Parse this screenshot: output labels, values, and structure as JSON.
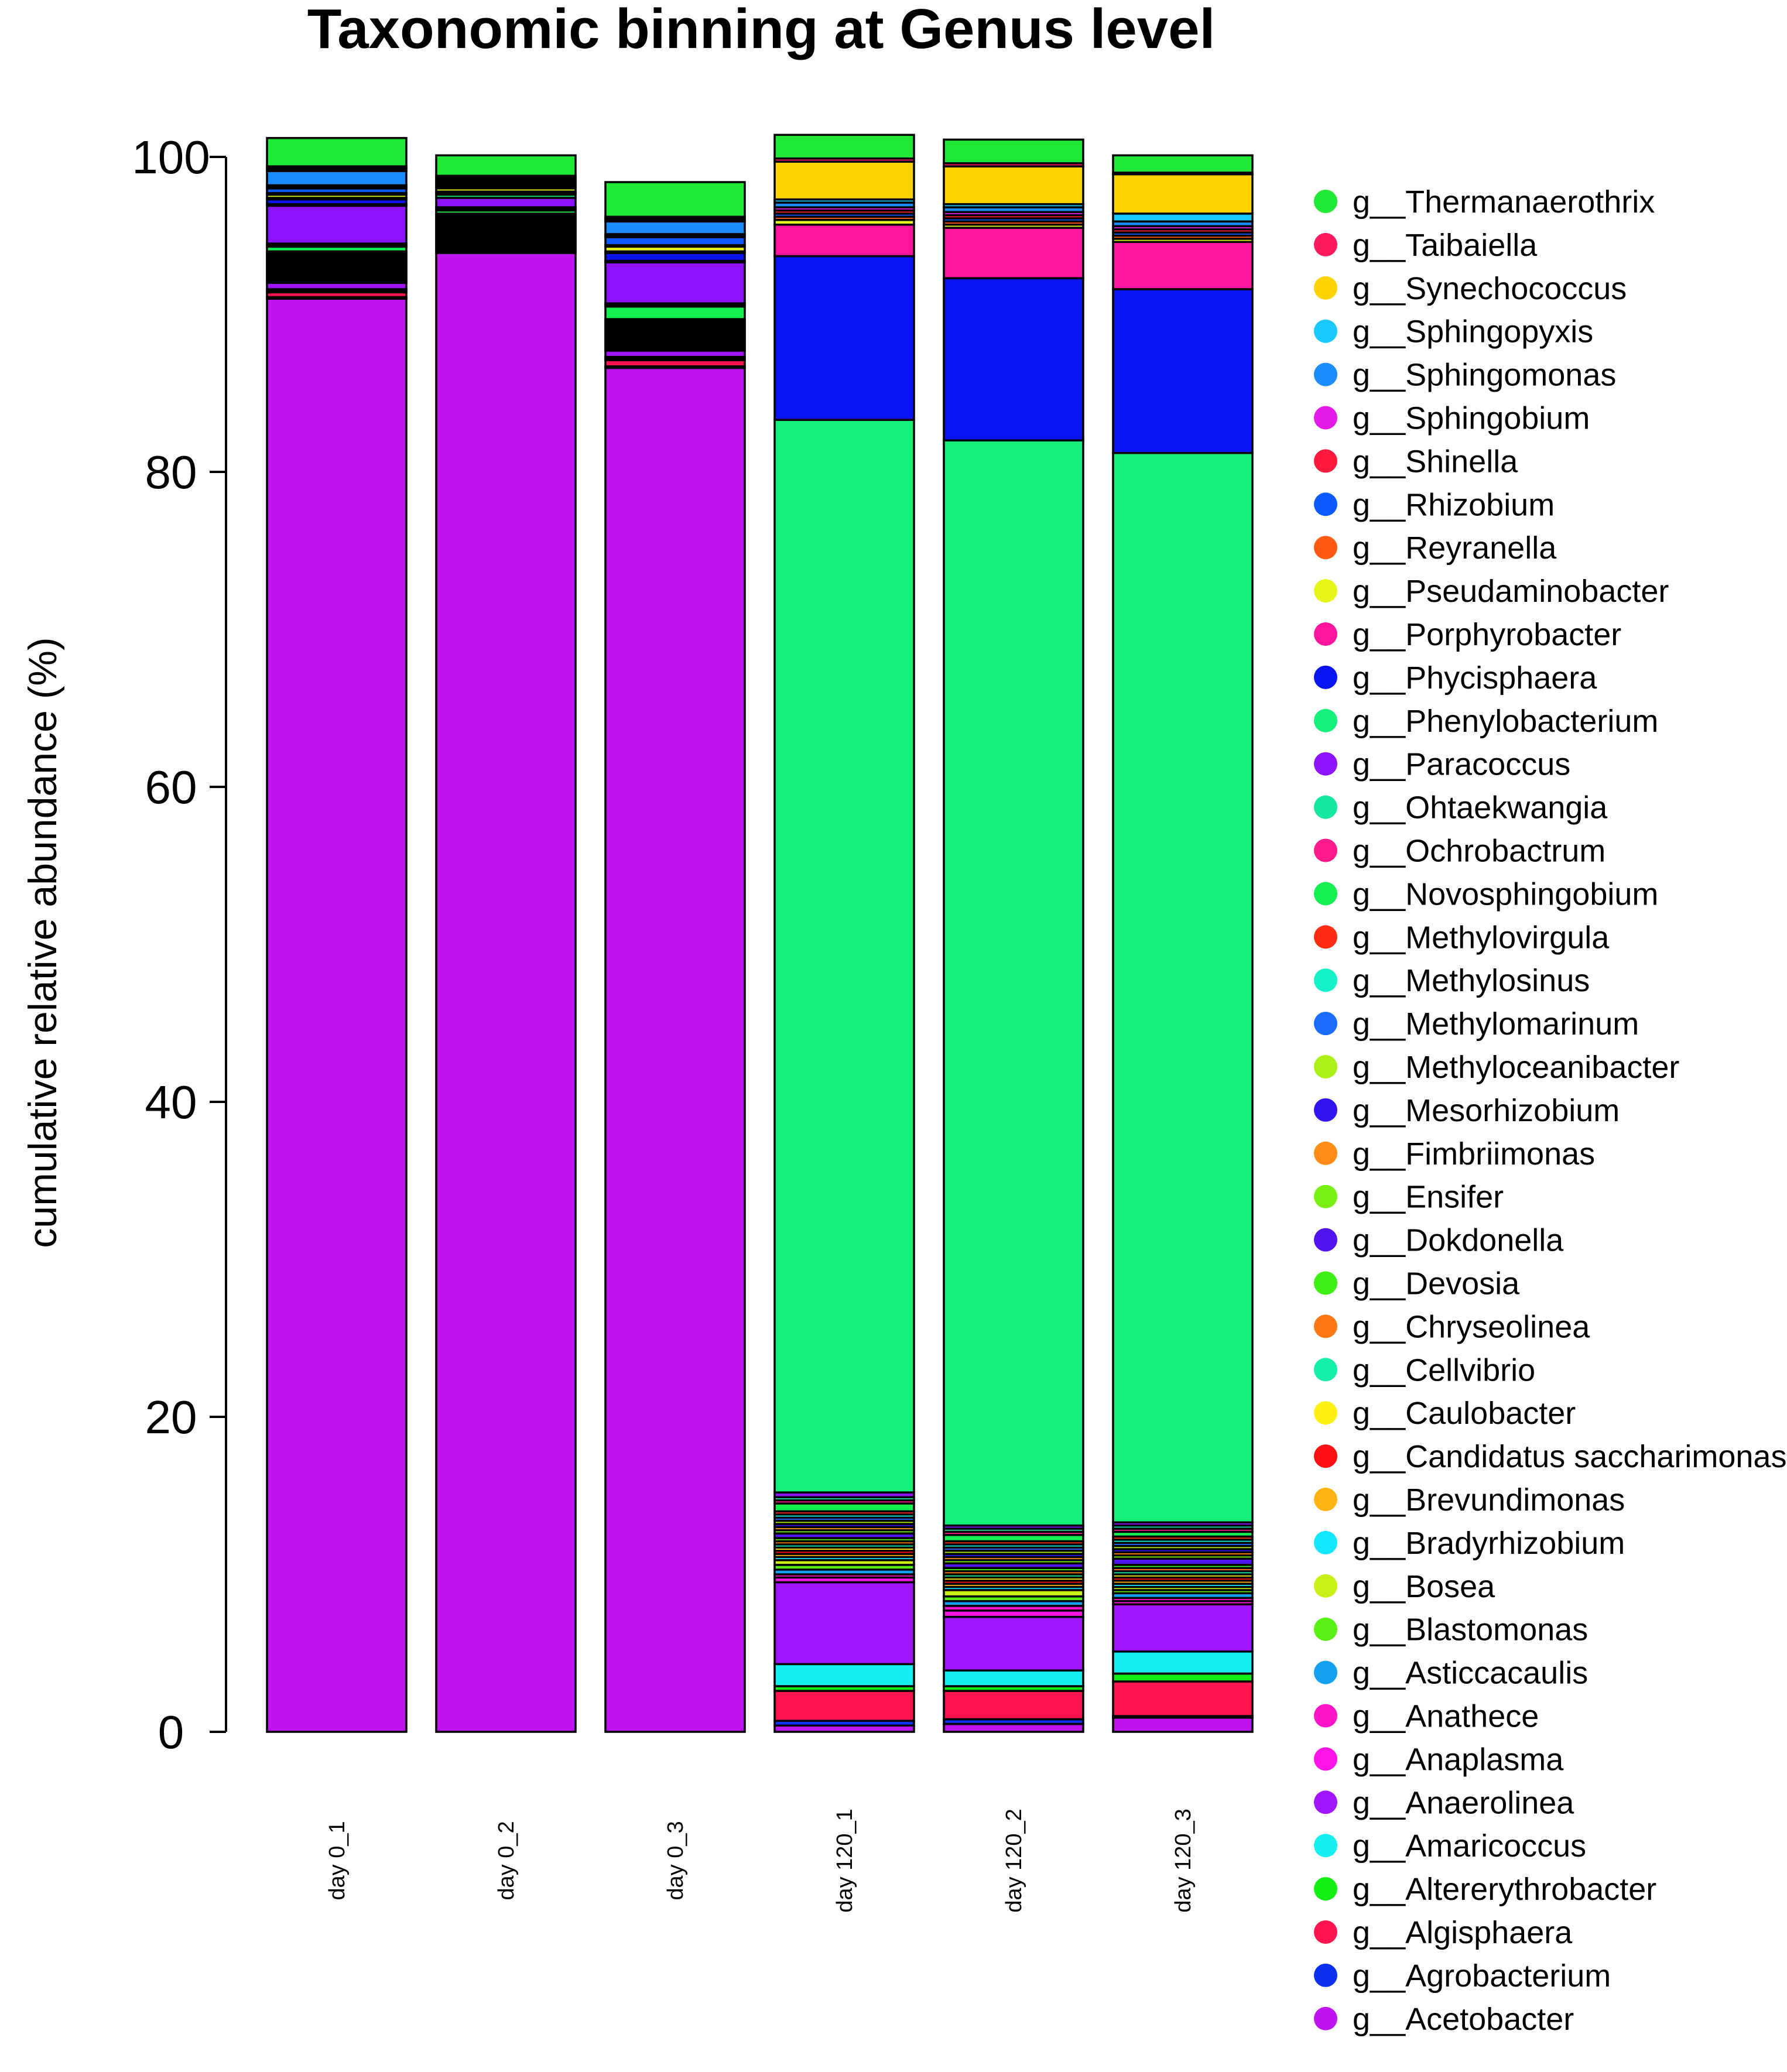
{
  "chart_data": {
    "type": "bar",
    "stacked": true,
    "title": "Taxonomic binning at Genus level",
    "xlabel": "",
    "ylabel": "cumulative relative abundance (%)",
    "ylim": [
      0,
      100
    ],
    "yticks": [
      0,
      20,
      40,
      60,
      80,
      100
    ],
    "categories": [
      "day 0_1",
      "day 0_2",
      "day 0_3",
      "day 120_1",
      "day 120_2",
      "day 120_3"
    ],
    "legend_position": "right",
    "legend": [
      {
        "name": "g__Thermanaerothrix",
        "color": "#1fe836"
      },
      {
        "name": "g__Taibaiella",
        "color": "#ff1a5e"
      },
      {
        "name": "g__Synechococcus",
        "color": "#ffd200"
      },
      {
        "name": "g__Sphingopyxis",
        "color": "#1ac8ff"
      },
      {
        "name": "g__Sphingomonas",
        "color": "#1a8cff"
      },
      {
        "name": "g__Sphingobium",
        "color": "#e61ae6"
      },
      {
        "name": "g__Shinella",
        "color": "#ff1a3c"
      },
      {
        "name": "g__Rhizobium",
        "color": "#0a5aff"
      },
      {
        "name": "g__Reyranella",
        "color": "#ff5a14"
      },
      {
        "name": "g__Pseudaminobacter",
        "color": "#e6f51a"
      },
      {
        "name": "g__Porphyrobacter",
        "color": "#ff14a0"
      },
      {
        "name": "g__Phycisphaera",
        "color": "#0a14f0"
      },
      {
        "name": "g__Phenylobacterium",
        "color": "#14f07a"
      },
      {
        "name": "g__Paracoccus",
        "color": "#8c14ff"
      },
      {
        "name": "g__Ohtaekwangia",
        "color": "#14e6a0"
      },
      {
        "name": "g__Ochrobactrum",
        "color": "#ff1a8c"
      },
      {
        "name": "g__Novosphingobium",
        "color": "#14f050"
      },
      {
        "name": "g__Methylovirgula",
        "color": "#ff2d14"
      },
      {
        "name": "g__Methylosinus",
        "color": "#14f0c8"
      },
      {
        "name": "g__Methylomarinum",
        "color": "#1a6cff"
      },
      {
        "name": "g__Methyloceanibacter",
        "color": "#aaf014"
      },
      {
        "name": "g__Mesorhizobium",
        "color": "#3214f0"
      },
      {
        "name": "g__Fimbriimonas",
        "color": "#ff8c14"
      },
      {
        "name": "g__Ensifer",
        "color": "#78f014"
      },
      {
        "name": "g__Dokdonella",
        "color": "#5014f0"
      },
      {
        "name": "g__Devosia",
        "color": "#3cf014"
      },
      {
        "name": "g__Chryseolinea",
        "color": "#ff7814"
      },
      {
        "name": "g__Cellvibrio",
        "color": "#14f0aa"
      },
      {
        "name": "g__Caulobacter",
        "color": "#fff014"
      },
      {
        "name": "g__Candidatus saccharimonas",
        "color": "#ff0f0f"
      },
      {
        "name": "g__Brevundimonas",
        "color": "#ffb414"
      },
      {
        "name": "g__Bradyrhizobium",
        "color": "#14e6ff"
      },
      {
        "name": "g__Bosea",
        "color": "#c8f014"
      },
      {
        "name": "g__Blastomonas",
        "color": "#5af014"
      },
      {
        "name": "g__Asticcacaulis",
        "color": "#14a0f0"
      },
      {
        "name": "g__Anathece",
        "color": "#ff14c8"
      },
      {
        "name": "g__Anaplasma",
        "color": "#ff14e6"
      },
      {
        "name": "g__Anaerolinea",
        "color": "#a014ff"
      },
      {
        "name": "g__Amaricoccus",
        "color": "#14f0f0"
      },
      {
        "name": "g__Altererythrobacter",
        "color": "#14f014"
      },
      {
        "name": "g__Algisphaera",
        "color": "#ff1450"
      },
      {
        "name": "g__Agrobacterium",
        "color": "#0a32f0"
      },
      {
        "name": "g__Acetobacter",
        "color": "#be14f0"
      }
    ],
    "series": [
      {
        "name": "g__Acetobacter",
        "values": [
          91.0,
          93.9,
          86.6,
          0.4,
          0.5,
          0.9
        ]
      },
      {
        "name": "g__Agrobacterium",
        "values": [
          0.1,
          0.1,
          0.1,
          0.3,
          0.3,
          0.1
        ]
      },
      {
        "name": "g__Algisphaera",
        "values": [
          0.3,
          0.1,
          0.4,
          1.9,
          1.8,
          2.2
        ]
      },
      {
        "name": "g__Altererythrobacter",
        "values": [
          0.1,
          0.1,
          0.1,
          0.3,
          0.3,
          0.5
        ]
      },
      {
        "name": "g__Amaricoccus",
        "values": [
          0.1,
          0.1,
          0.1,
          1.4,
          1.0,
          1.4
        ]
      },
      {
        "name": "g__Anaerolinea",
        "values": [
          0.4,
          0.1,
          0.4,
          5.2,
          3.4,
          3.0
        ]
      },
      {
        "name": "g__Anaplasma",
        "values": [
          0.1,
          0.1,
          0.1,
          0.3,
          0.4,
          0.2
        ]
      },
      {
        "name": "g__Anathece",
        "values": [
          0.1,
          0.1,
          0.1,
          0.2,
          0.3,
          0.2
        ]
      },
      {
        "name": "g__Asticcacaulis",
        "values": [
          0.1,
          0.1,
          0.1,
          0.3,
          0.3,
          0.3
        ]
      },
      {
        "name": "g__Blastomonas",
        "values": [
          0.1,
          0.1,
          0.1,
          0.3,
          0.3,
          0.2
        ]
      },
      {
        "name": "g__Bosea",
        "values": [
          0.1,
          0.1,
          0.1,
          0.3,
          0.4,
          0.2
        ]
      },
      {
        "name": "g__Bradyrhizobium",
        "values": [
          0.1,
          0.1,
          0.1,
          0.2,
          0.2,
          0.2
        ]
      },
      {
        "name": "g__Brevundimonas",
        "values": [
          0.1,
          0.1,
          0.1,
          0.2,
          0.2,
          0.2
        ]
      },
      {
        "name": "g__Candidatus saccharimonas",
        "values": [
          0.1,
          0.1,
          0.1,
          0.2,
          0.2,
          0.2
        ]
      },
      {
        "name": "g__Caulobacter",
        "values": [
          0.1,
          0.1,
          0.1,
          0.2,
          0.2,
          0.2
        ]
      },
      {
        "name": "g__Cellvibrio",
        "values": [
          0.1,
          0.1,
          0.1,
          0.2,
          0.2,
          0.2
        ]
      },
      {
        "name": "g__Chryseolinea",
        "values": [
          0.1,
          0.1,
          0.1,
          0.2,
          0.2,
          0.2
        ]
      },
      {
        "name": "g__Devosia",
        "values": [
          0.1,
          0.1,
          0.1,
          0.2,
          0.2,
          0.2
        ]
      },
      {
        "name": "g__Dokdonella",
        "values": [
          0.1,
          0.1,
          0.1,
          0.3,
          0.3,
          0.4
        ]
      },
      {
        "name": "g__Ensifer",
        "values": [
          0.1,
          0.1,
          0.1,
          0.2,
          0.2,
          0.2
        ]
      },
      {
        "name": "g__Fimbriimonas",
        "values": [
          0.1,
          0.1,
          0.1,
          0.2,
          0.2,
          0.2
        ]
      },
      {
        "name": "g__Mesorhizobium",
        "values": [
          0.1,
          0.1,
          0.1,
          0.2,
          0.2,
          0.2
        ]
      },
      {
        "name": "g__Methyloceanibacter",
        "values": [
          0.1,
          0.1,
          0.1,
          0.2,
          0.2,
          0.2
        ]
      },
      {
        "name": "g__Methylomarinum",
        "values": [
          0.1,
          0.1,
          0.1,
          0.2,
          0.2,
          0.2
        ]
      },
      {
        "name": "g__Methylosinus",
        "values": [
          0.1,
          0.1,
          0.1,
          0.2,
          0.2,
          0.2
        ]
      },
      {
        "name": "g__Methylovirgula",
        "values": [
          0.1,
          0.1,
          0.1,
          0.2,
          0.2,
          0.2
        ]
      },
      {
        "name": "g__Novosphingobium",
        "values": [
          0.3,
          0.2,
          0.8,
          0.5,
          0.4,
          0.3
        ]
      },
      {
        "name": "g__Ochrobactrum",
        "values": [
          0.1,
          0.1,
          0.1,
          0.2,
          0.2,
          0.2
        ]
      },
      {
        "name": "g__Ohtaekwangia",
        "values": [
          0.1,
          0.1,
          0.1,
          0.2,
          0.2,
          0.2
        ]
      },
      {
        "name": "g__Paracoccus",
        "values": [
          2.4,
          0.6,
          2.6,
          0.3,
          0.2,
          0.2
        ]
      },
      {
        "name": "g__Phenylobacterium",
        "values": [
          0.1,
          0.2,
          0.1,
          68.1,
          68.9,
          67.9
        ]
      },
      {
        "name": "g__Phycisphaera",
        "values": [
          0.3,
          0.1,
          0.5,
          10.4,
          10.3,
          10.4
        ]
      },
      {
        "name": "g__Porphyrobacter",
        "values": [
          0.1,
          0.1,
          0.1,
          2.0,
          3.2,
          3.0
        ]
      },
      {
        "name": "g__Pseudaminobacter",
        "values": [
          0.2,
          0.2,
          0.3,
          0.3,
          0.2,
          0.2
        ]
      },
      {
        "name": "g__Reyranella",
        "values": [
          0.1,
          0.1,
          0.1,
          0.2,
          0.2,
          0.2
        ]
      },
      {
        "name": "g__Rhizobium",
        "values": [
          0.3,
          0.1,
          0.5,
          0.2,
          0.2,
          0.2
        ]
      },
      {
        "name": "g__Shinella",
        "values": [
          0.1,
          0.1,
          0.1,
          0.2,
          0.2,
          0.2
        ]
      },
      {
        "name": "g__Sphingobium",
        "values": [
          0.1,
          0.1,
          0.1,
          0.2,
          0.2,
          0.2
        ]
      },
      {
        "name": "g__Sphingomonas",
        "values": [
          0.9,
          0.1,
          0.8,
          0.3,
          0.3,
          0.3
        ]
      },
      {
        "name": "g__Sphingopyxis",
        "values": [
          0.1,
          0.1,
          0.1,
          0.2,
          0.2,
          0.5
        ]
      },
      {
        "name": "g__Synechococcus",
        "values": [
          0.1,
          0.1,
          0.1,
          2.4,
          2.4,
          2.5
        ]
      },
      {
        "name": "g__Taibaiella",
        "values": [
          0.1,
          0.1,
          0.1,
          0.2,
          0.2,
          0.1
        ]
      },
      {
        "name": "g__Thermanaerothrix",
        "values": [
          1.8,
          1.3,
          2.2,
          1.5,
          1.5,
          1.1
        ]
      }
    ]
  }
}
